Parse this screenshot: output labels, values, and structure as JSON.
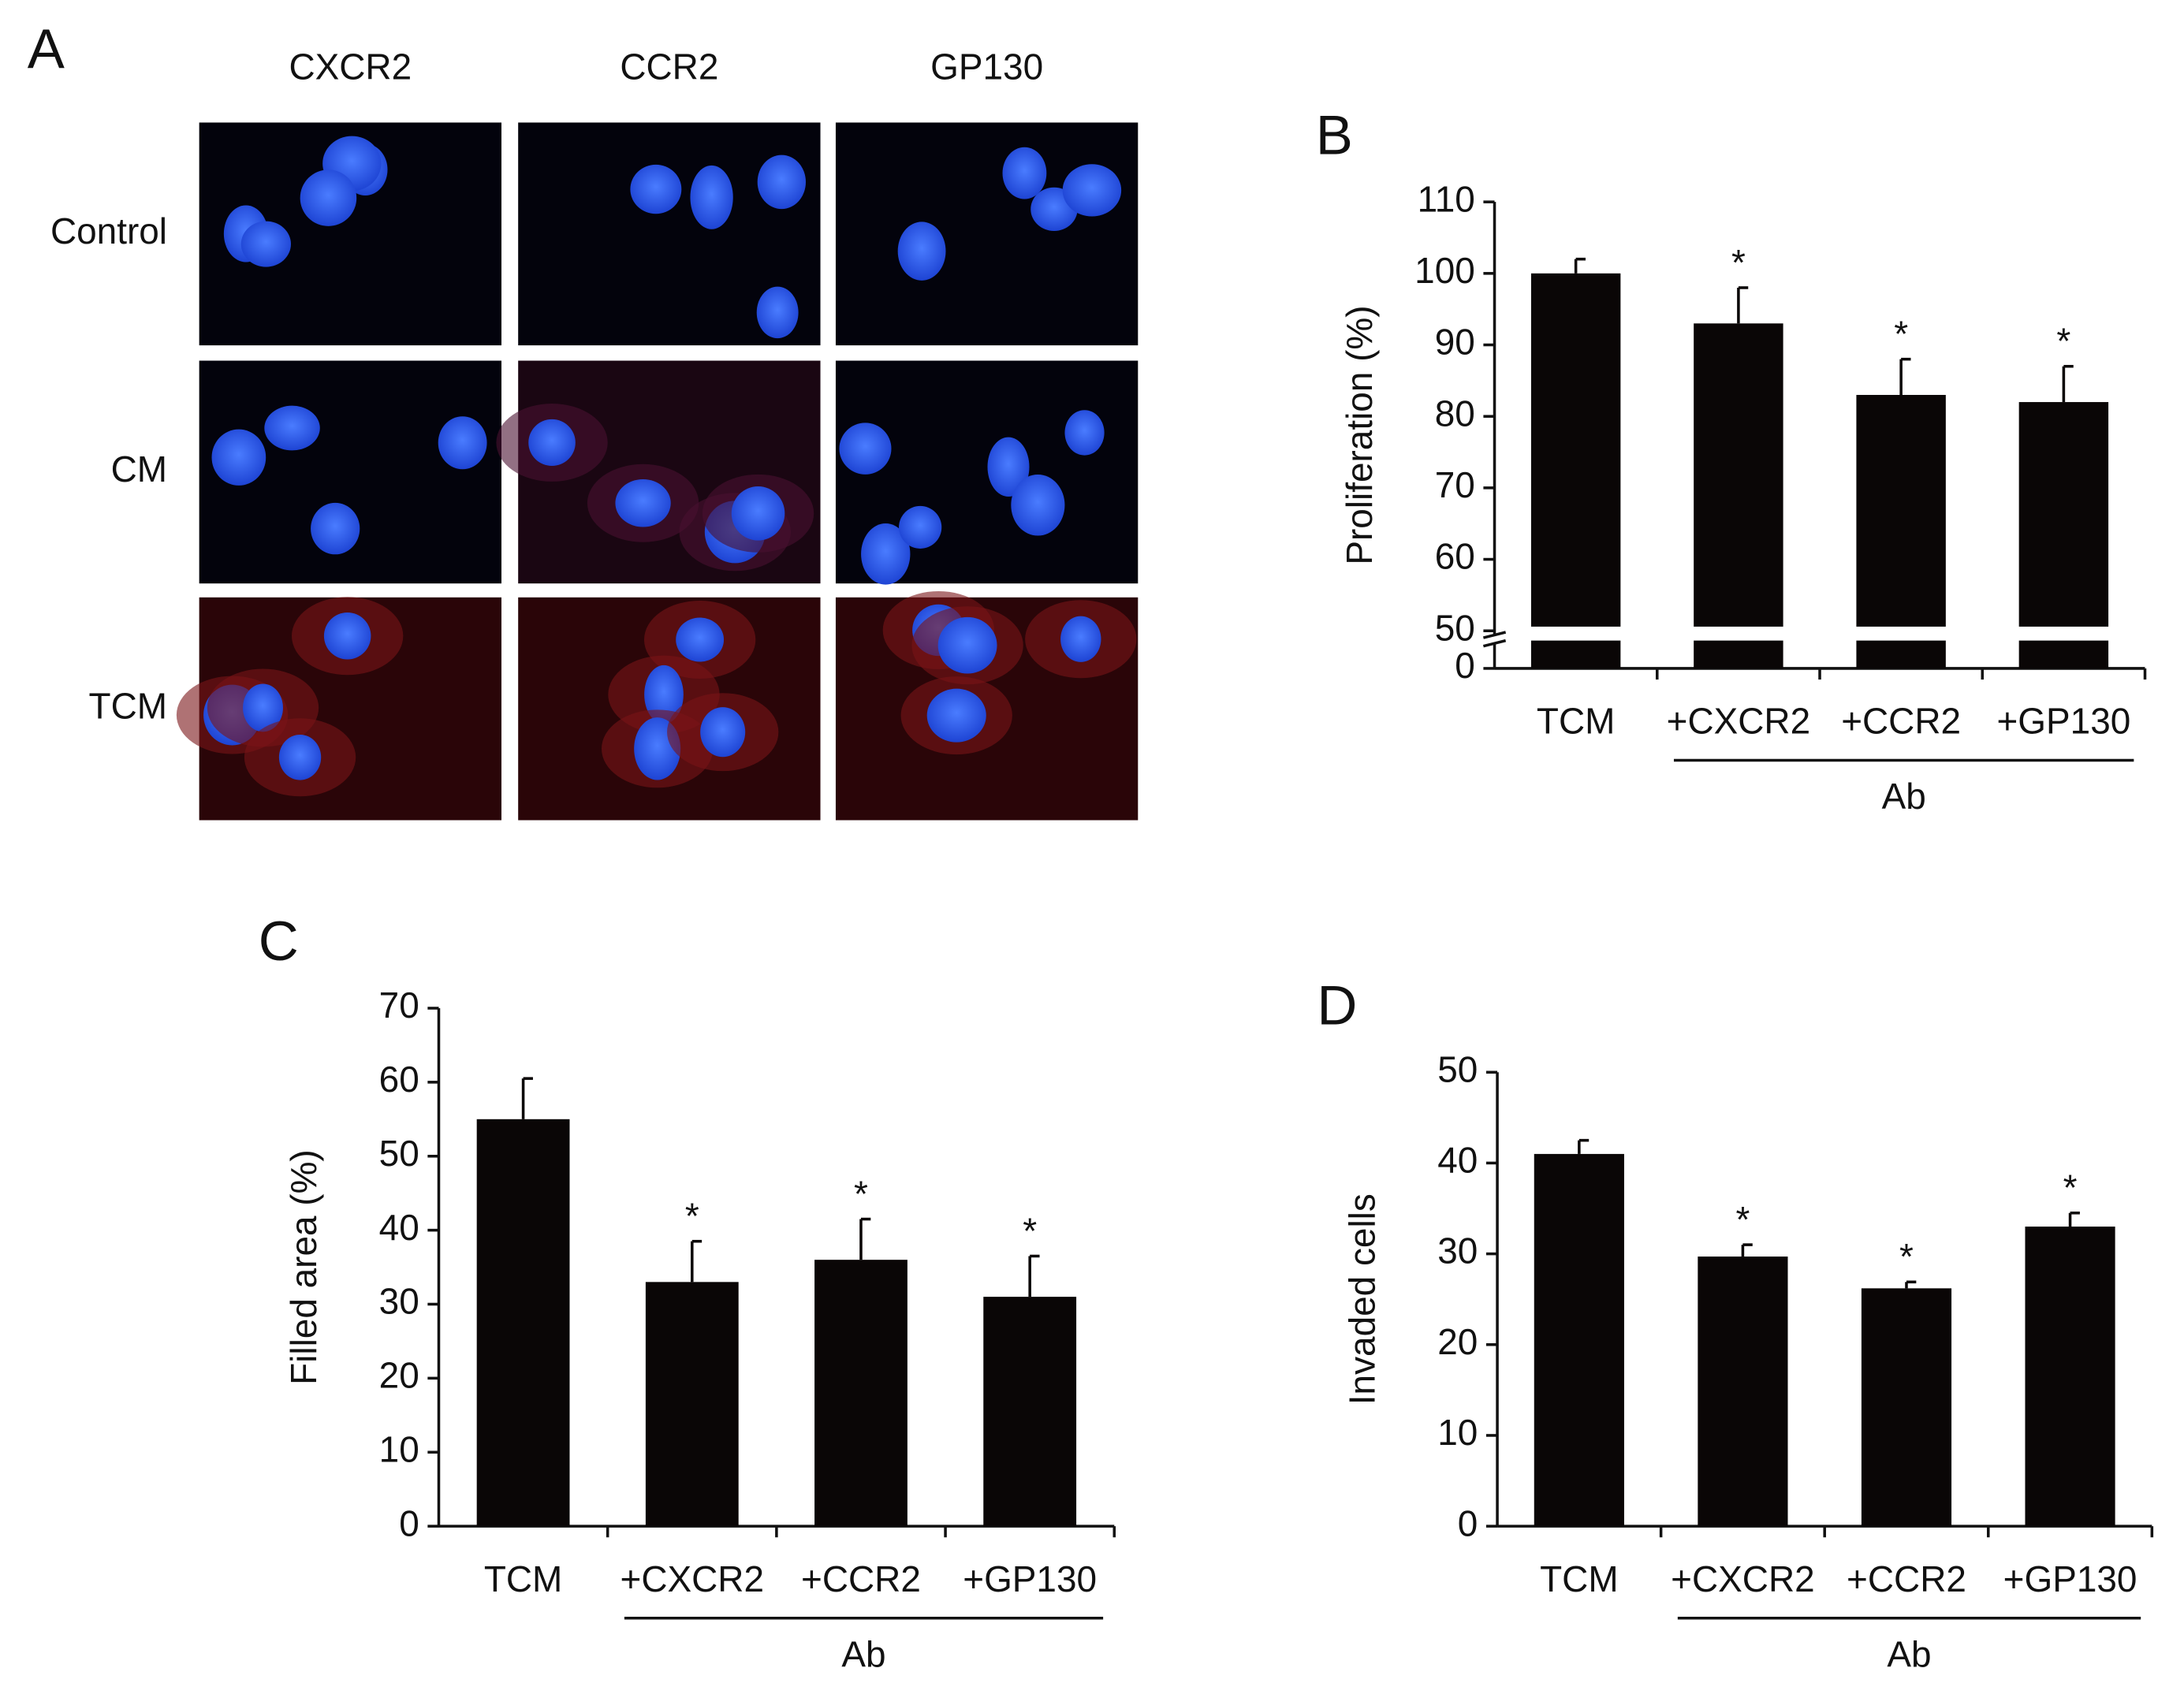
{
  "panel_a": {
    "label": "A",
    "columns": [
      "CXCR2",
      "CCR2",
      "GP130"
    ],
    "rows": [
      "Control",
      "CM",
      "TCM"
    ]
  },
  "chart_data": [
    {
      "type": "bar",
      "panel": "B",
      "y_label": "Proliferation (%)",
      "categories": [
        "TCM",
        "+CXCR2",
        "+CCR2",
        "+GP130"
      ],
      "values": [
        100,
        93,
        83,
        82
      ],
      "errors": [
        2,
        5,
        5,
        5
      ],
      "significance": [
        null,
        "*",
        "*",
        "*"
      ],
      "groups": [
        {
          "label": "Ab",
          "span": [
            1,
            3
          ]
        }
      ],
      "color": "#0a0606",
      "ylim": [
        50,
        110
      ],
      "yticks": [
        0,
        50,
        60,
        70,
        80,
        90,
        100,
        110
      ],
      "axis_break": true
    },
    {
      "type": "bar",
      "panel": "C",
      "y_label": "Filled area (%)",
      "categories": [
        "TCM",
        "+CXCR2",
        "+CCR2",
        "+GP130"
      ],
      "values": [
        55,
        33,
        36,
        31
      ],
      "errors": [
        5.5,
        5.5,
        5.5,
        5.5
      ],
      "significance": [
        null,
        "*",
        "*",
        "*"
      ],
      "groups": [
        {
          "label": "Ab",
          "span": [
            1,
            3
          ]
        }
      ],
      "color": "#0a0606",
      "ylim": [
        0,
        70
      ],
      "yticks": [
        0,
        10,
        20,
        30,
        40,
        50,
        60,
        70
      ]
    },
    {
      "type": "bar",
      "panel": "D",
      "y_label": "Invaded cells",
      "categories": [
        "TCM",
        "+CXCR2",
        "+CCR2",
        "+GP130"
      ],
      "values": [
        41,
        29.7,
        26.2,
        33
      ],
      "errors": [
        1.5,
        1.3,
        0.7,
        1.5
      ],
      "significance": [
        null,
        "*",
        "*",
        "*"
      ],
      "groups": [
        {
          "label": "Ab",
          "span": [
            1,
            3
          ]
        }
      ],
      "color": "#0a0606",
      "ylim": [
        0,
        50
      ],
      "yticks": [
        0,
        10,
        20,
        30,
        40,
        50
      ]
    }
  ]
}
